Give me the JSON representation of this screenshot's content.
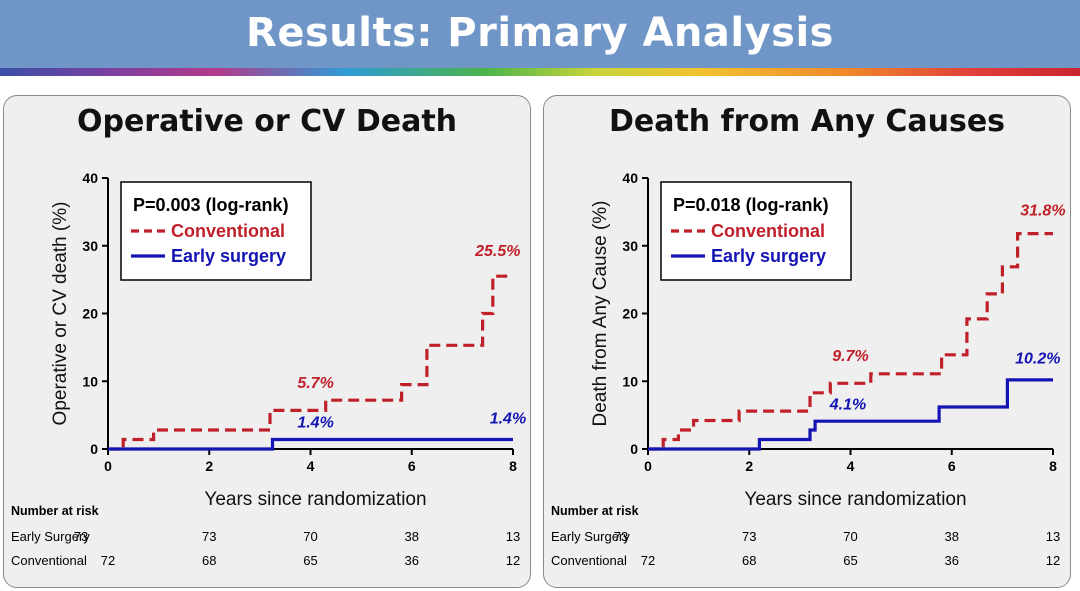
{
  "header": {
    "title": "Results: Primary Analysis"
  },
  "risk_table": {
    "label": "Number at risk",
    "rows": [
      {
        "name": "Early Surgery",
        "counts": [
          73,
          73,
          70,
          38,
          13
        ]
      },
      {
        "name": "Conventional",
        "counts": [
          72,
          68,
          65,
          36,
          12
        ]
      }
    ]
  },
  "colors": {
    "conventional": "#c0202a",
    "early_surgery": "#1414b4"
  },
  "chart_data": [
    {
      "type": "line",
      "title": "Operative or CV Death",
      "xlabel": "Years since randomization",
      "ylabel": "Operative or CV death (%)",
      "xlim": [
        0,
        8
      ],
      "ylim": [
        0,
        40
      ],
      "xticks": [
        0,
        2,
        4,
        6,
        8
      ],
      "yticks": [
        0,
        10,
        20,
        30,
        40
      ],
      "pvalue": "P=0.003 (log-rank)",
      "legend_position": "top-left",
      "series": [
        {
          "name": "Conventional",
          "style": "dashed",
          "color": "#c0202a",
          "x": [
            0,
            0.3,
            0.3,
            0.9,
            0.9,
            3.2,
            3.2,
            4.3,
            4.3,
            5.8,
            5.8,
            6.3,
            6.3,
            7.4,
            7.4,
            7.6,
            7.6,
            8.0
          ],
          "y": [
            0,
            0,
            1.4,
            1.4,
            2.8,
            2.8,
            5.7,
            5.7,
            7.2,
            7.2,
            9.5,
            9.5,
            15.3,
            15.3,
            20.0,
            20.0,
            25.5,
            25.5
          ]
        },
        {
          "name": "Early surgery",
          "style": "solid",
          "color": "#1414b4",
          "x": [
            0,
            3.25,
            3.25,
            8.0
          ],
          "y": [
            0,
            0,
            1.4,
            1.4
          ]
        }
      ],
      "annotations": [
        {
          "text": "25.5%",
          "series": "Conventional",
          "x": 7.7,
          "y": 28.5
        },
        {
          "text": "5.7%",
          "series": "Conventional",
          "x": 4.1,
          "y": 9.0
        },
        {
          "text": "1.4%",
          "series": "Early surgery",
          "x": 4.1,
          "y": 3.2
        },
        {
          "text": "1.4%",
          "series": "Early surgery",
          "x": 7.9,
          "y": 3.8
        }
      ]
    },
    {
      "type": "line",
      "title": "Death from Any Causes",
      "xlabel": "Years since randomization",
      "ylabel": "Death from Any Cause (%)",
      "xlim": [
        0,
        8
      ],
      "ylim": [
        0,
        40
      ],
      "xticks": [
        0,
        2,
        4,
        6,
        8
      ],
      "yticks": [
        0,
        10,
        20,
        30,
        40
      ],
      "pvalue": "P=0.018 (log-rank)",
      "legend_position": "top-left",
      "series": [
        {
          "name": "Conventional",
          "style": "dashed",
          "color": "#c0202a",
          "x": [
            0,
            0.3,
            0.3,
            0.6,
            0.6,
            0.9,
            0.9,
            1.8,
            1.8,
            3.2,
            3.2,
            3.6,
            3.6,
            4.4,
            4.4,
            5.8,
            5.8,
            6.3,
            6.3,
            6.7,
            6.7,
            7.0,
            7.0,
            7.3,
            7.3,
            7.6,
            7.6,
            8.0
          ],
          "y": [
            0,
            0,
            1.4,
            1.4,
            2.8,
            2.8,
            4.2,
            4.2,
            5.6,
            5.6,
            8.3,
            8.3,
            9.7,
            9.7,
            11.1,
            11.1,
            13.9,
            13.9,
            19.2,
            19.2,
            22.9,
            22.9,
            26.9,
            26.9,
            31.8,
            31.8,
            31.8,
            31.8
          ]
        },
        {
          "name": "Early surgery",
          "style": "solid",
          "color": "#1414b4",
          "x": [
            0,
            2.2,
            2.2,
            3.2,
            3.2,
            3.3,
            3.3,
            5.75,
            5.75,
            7.1,
            7.1,
            8.0
          ],
          "y": [
            0,
            0,
            1.4,
            1.4,
            2.8,
            2.8,
            4.1,
            4.1,
            6.2,
            6.2,
            10.2,
            10.2
          ]
        }
      ],
      "annotations": [
        {
          "text": "31.8%",
          "series": "Conventional",
          "x": 7.8,
          "y": 34.5
        },
        {
          "text": "9.7%",
          "series": "Conventional",
          "x": 4.0,
          "y": 13.0
        },
        {
          "text": "4.1%",
          "series": "Early surgery",
          "x": 3.95,
          "y": 5.8
        },
        {
          "text": "10.2%",
          "series": "Early surgery",
          "x": 7.7,
          "y": 12.6
        }
      ]
    }
  ]
}
